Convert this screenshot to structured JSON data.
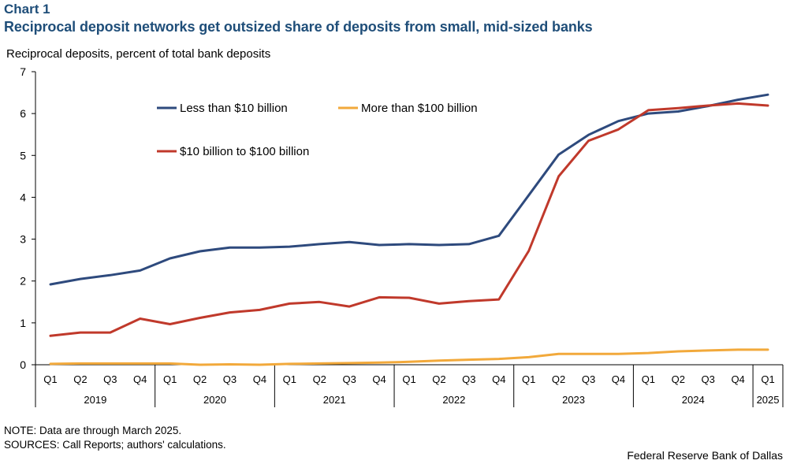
{
  "header": {
    "chart_label": "Chart 1",
    "title": "Reciprocal deposit networks get outsized share of deposits from small, mid-sized banks",
    "y_axis_label": "Reciprocal deposits, percent of total bank deposits"
  },
  "footer": {
    "note": "NOTE: Data are through March 2025.",
    "sources": "SOURCES: Call Reports; authors' calculations.",
    "credit": "Federal Reserve Bank of Dallas"
  },
  "chart_data": {
    "type": "line",
    "title": "Reciprocal deposit networks get outsized share of deposits from small, mid-sized banks",
    "ylabel": "Reciprocal deposits, percent of total bank deposits",
    "xlabel": "",
    "ylim": [
      0,
      7
    ],
    "yticks": [
      0,
      1,
      2,
      3,
      4,
      5,
      6,
      7
    ],
    "grid": false,
    "legend_placement": "inside top-left",
    "categories": [
      "Q1",
      "Q2",
      "Q3",
      "Q4",
      "Q1",
      "Q2",
      "Q3",
      "Q4",
      "Q1",
      "Q2",
      "Q3",
      "Q4",
      "Q1",
      "Q2",
      "Q3",
      "Q4",
      "Q1",
      "Q2",
      "Q3",
      "Q4",
      "Q1",
      "Q2",
      "Q3",
      "Q4",
      "Q1"
    ],
    "year_groups": [
      {
        "label": "2019",
        "count": 4
      },
      {
        "label": "2020",
        "count": 4
      },
      {
        "label": "2021",
        "count": 4
      },
      {
        "label": "2022",
        "count": 4
      },
      {
        "label": "2023",
        "count": 4
      },
      {
        "label": "2024",
        "count": 4
      },
      {
        "label": "2025",
        "count": 1
      }
    ],
    "series": [
      {
        "name": "Less than $10 billion",
        "color": "#2e4a7d",
        "values": [
          1.92,
          2.05,
          2.14,
          2.25,
          2.54,
          2.71,
          2.8,
          2.8,
          2.82,
          2.88,
          2.93,
          2.86,
          2.88,
          2.86,
          2.88,
          3.08,
          4.05,
          5.02,
          5.49,
          5.82,
          6.0,
          6.05,
          6.18,
          6.33,
          6.45
        ]
      },
      {
        "name": "More than $100 billion",
        "color": "#f2a93b",
        "values": [
          0.02,
          0.03,
          0.03,
          0.03,
          0.03,
          0.0,
          0.01,
          0.0,
          0.02,
          0.03,
          0.04,
          0.05,
          0.07,
          0.1,
          0.12,
          0.14,
          0.18,
          0.26,
          0.26,
          0.26,
          0.28,
          0.32,
          0.34,
          0.36,
          0.36
        ]
      },
      {
        "name": "$10 billion to $100 billion",
        "color": "#c0392b",
        "values": [
          0.69,
          0.77,
          0.77,
          1.1,
          0.97,
          1.12,
          1.25,
          1.31,
          1.46,
          1.5,
          1.39,
          1.61,
          1.6,
          1.46,
          1.52,
          1.56,
          2.72,
          4.5,
          5.35,
          5.62,
          6.08,
          6.13,
          6.19,
          6.24,
          6.19
        ]
      }
    ]
  }
}
